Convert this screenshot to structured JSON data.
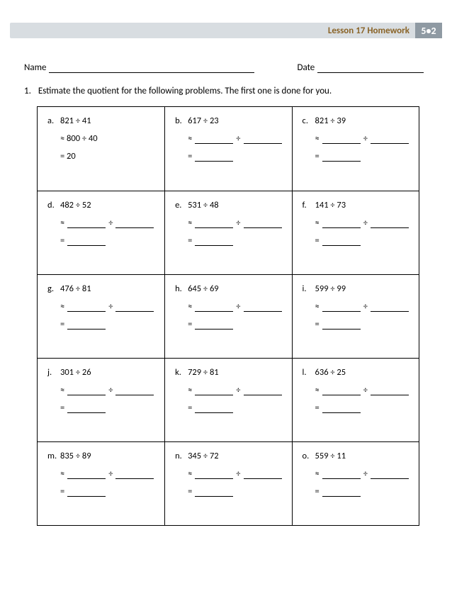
{
  "header": {
    "title": "Lesson 17 Homework",
    "module": "5•2",
    "title_color": "#8a6428",
    "bar_bg": "#d8dde1",
    "module_bg": "#8f9aa3",
    "module_fg": "#ffffff"
  },
  "labels": {
    "name": "Name",
    "date": "Date"
  },
  "instruction": {
    "number": "1.",
    "text": "Estimate the quotient for the following problems.  The first one is done for you."
  },
  "divide_symbol": "÷",
  "approx_symbol": "≈",
  "equals_symbol": "=",
  "problems": [
    [
      {
        "letter": "a.",
        "expr": "821 ÷ 41",
        "filled": true,
        "approx_expr": "800 ÷ 40",
        "result": "20"
      },
      {
        "letter": "b.",
        "expr": "617 ÷ 23",
        "filled": false
      },
      {
        "letter": "c.",
        "expr": "821 ÷ 39",
        "filled": false
      }
    ],
    [
      {
        "letter": "d.",
        "expr": "482 ÷ 52",
        "filled": false
      },
      {
        "letter": "e.",
        "expr": "531 ÷ 48",
        "filled": false
      },
      {
        "letter": "f.",
        "expr": "141 ÷ 73",
        "filled": false
      }
    ],
    [
      {
        "letter": "g.",
        "expr": "476 ÷ 81",
        "filled": false
      },
      {
        "letter": "h.",
        "expr": "645 ÷ 69",
        "filled": false
      },
      {
        "letter": "i.",
        "expr": "599 ÷ 99",
        "filled": false
      }
    ],
    [
      {
        "letter": "j.",
        "expr": "301 ÷ 26",
        "filled": false
      },
      {
        "letter": "k.",
        "expr": "729 ÷ 81",
        "filled": false
      },
      {
        "letter": "l.",
        "expr": "636 ÷ 25",
        "filled": false
      }
    ],
    [
      {
        "letter": "m.",
        "expr": "835 ÷ 89",
        "filled": false
      },
      {
        "letter": "n.",
        "expr": "345 ÷ 72",
        "filled": false
      },
      {
        "letter": "o.",
        "expr": "559 ÷ 11",
        "filled": false
      }
    ]
  ]
}
